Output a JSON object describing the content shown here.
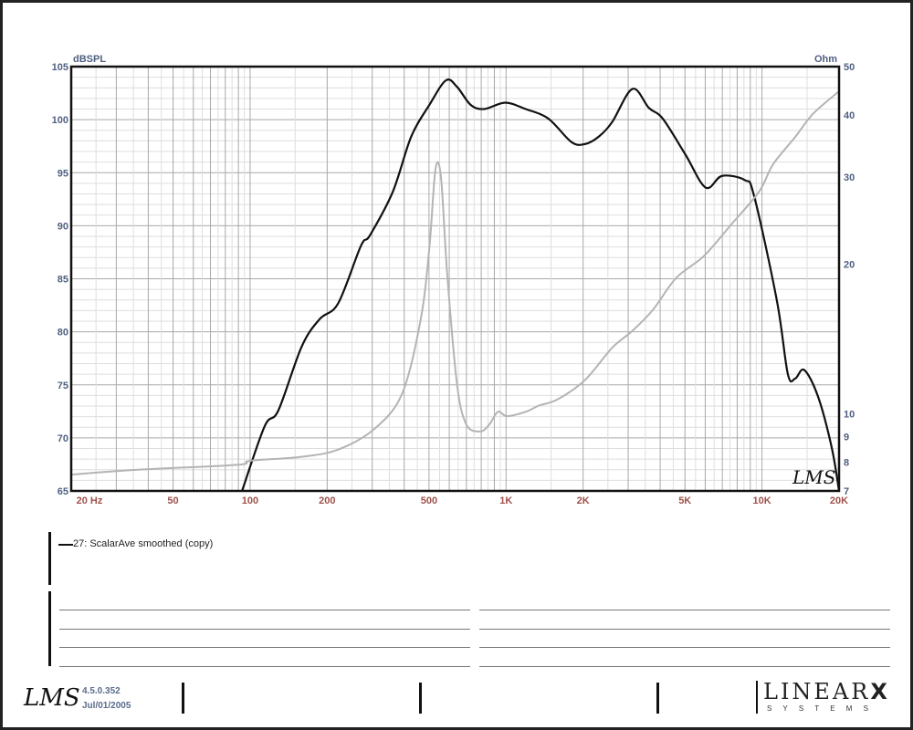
{
  "chart_data": {
    "type": "line",
    "x_scale": "log",
    "xlim": [
      20,
      20000
    ],
    "ylim_left": [
      65,
      105
    ],
    "ylim_right": [
      7,
      50
    ],
    "y_right_scale": "log",
    "ylabel_left": "dBSPL",
    "ylabel_right": "Ohm",
    "x_ticks": [
      {
        "value": 20,
        "label": "20  Hz"
      },
      {
        "value": 50,
        "label": "50"
      },
      {
        "value": 100,
        "label": "100"
      },
      {
        "value": 200,
        "label": "200"
      },
      {
        "value": 500,
        "label": "500"
      },
      {
        "value": 1000,
        "label": "1K"
      },
      {
        "value": 2000,
        "label": "2K"
      },
      {
        "value": 5000,
        "label": "5K"
      },
      {
        "value": 10000,
        "label": "10K"
      },
      {
        "value": 20000,
        "label": "20K"
      }
    ],
    "y_left_ticks": [
      "105",
      "100",
      "95",
      "90",
      "85",
      "80",
      "75",
      "70",
      "65"
    ],
    "y_right_ticks": [
      "50",
      "40",
      "30",
      "20",
      "10",
      "9",
      "8",
      "7"
    ],
    "grid": true,
    "series": [
      {
        "name": "27: ScalarAve smoothed (copy)",
        "axis": "left",
        "color": "#111111",
        "points": [
          [
            93,
            65
          ],
          [
            114,
            71.1
          ],
          [
            129,
            72.6
          ],
          [
            159,
            78.6
          ],
          [
            187,
            81.2
          ],
          [
            221,
            82.7
          ],
          [
            271,
            88.1
          ],
          [
            294,
            89.1
          ],
          [
            361,
            93.2
          ],
          [
            426,
            98.4
          ],
          [
            502,
            101.4
          ],
          [
            582,
            103.7
          ],
          [
            643,
            103.1
          ],
          [
            727,
            101.4
          ],
          [
            822,
            101.0
          ],
          [
            993,
            101.6
          ],
          [
            1192,
            101.0
          ],
          [
            1463,
            100.1
          ],
          [
            1799,
            97.9
          ],
          [
            2033,
            97.7
          ],
          [
            2302,
            98.4
          ],
          [
            2601,
            99.8
          ],
          [
            3118,
            102.9
          ],
          [
            3616,
            101.1
          ],
          [
            4093,
            100.1
          ],
          [
            5024,
            96.7
          ],
          [
            6025,
            93.6
          ],
          [
            6982,
            94.7
          ],
          [
            8574,
            94.3
          ],
          [
            9315,
            92.8
          ],
          [
            11440,
            82.9
          ],
          [
            12620,
            76.0
          ],
          [
            13490,
            75.6
          ],
          [
            14630,
            76.4
          ],
          [
            16550,
            73.9
          ],
          [
            18720,
            69.1
          ],
          [
            20000,
            65
          ]
        ]
      },
      {
        "axis": "right",
        "color": "#b4b4b4",
        "points": [
          [
            20,
            7.55
          ],
          [
            36,
            7.72
          ],
          [
            89,
            7.9
          ],
          [
            100,
            8.05
          ],
          [
            159,
            8.2
          ],
          [
            221,
            8.48
          ],
          [
            306,
            9.33
          ],
          [
            393,
            11.0
          ],
          [
            464,
            15.5
          ],
          [
            502,
            21.7
          ],
          [
            530,
            31.1
          ],
          [
            557,
            29.9
          ],
          [
            589,
            19.1
          ],
          [
            643,
            11.5
          ],
          [
            699,
            9.53
          ],
          [
            790,
            9.22
          ],
          [
            857,
            9.5
          ],
          [
            930,
            10.1
          ],
          [
            1007,
            9.9
          ],
          [
            1192,
            10.1
          ],
          [
            1349,
            10.4
          ],
          [
            1591,
            10.7
          ],
          [
            2033,
            11.7
          ],
          [
            2601,
            13.6
          ],
          [
            3118,
            14.7
          ],
          [
            3749,
            16.2
          ],
          [
            4629,
            18.8
          ],
          [
            5936,
            20.8
          ],
          [
            7604,
            24.1
          ],
          [
            9734,
            28.0
          ],
          [
            11050,
            31.8
          ],
          [
            13490,
            36.1
          ],
          [
            15840,
            40.2
          ],
          [
            20000,
            44.6
          ]
        ]
      }
    ]
  },
  "legend": {
    "entry": "27: ScalarAve smoothed (copy)"
  },
  "footer": {
    "version": "4.5.0.352",
    "date": "Jul/01/2005",
    "logo_lms": "LMS",
    "logo_brand": "LINEAR",
    "logo_brand_x": "X",
    "logo_sub": "S Y S T E M S"
  },
  "colors": {
    "x_tick": "#a0524b",
    "y_tick": "#4f5f80",
    "grid_major": "#a8a8a8",
    "grid_minor": "#dedede"
  }
}
